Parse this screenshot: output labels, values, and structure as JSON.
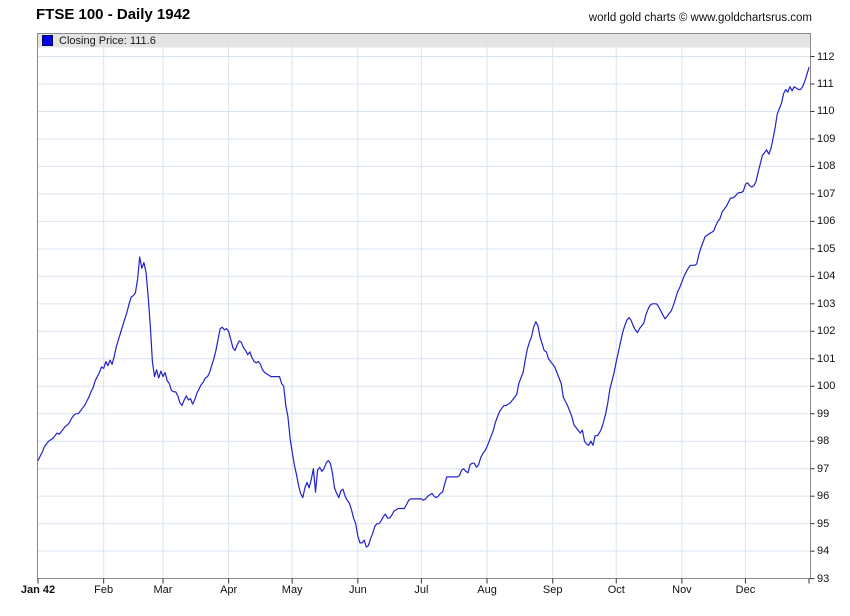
{
  "page": {
    "title": "FTSE 100 - Daily 1942",
    "copyright": "world gold charts © www.goldchartsrus.com"
  },
  "legend": {
    "series_label": "Closing Price",
    "value": "111.6",
    "text": "Closing Price: 111.6",
    "swatch_color": "#0000ee"
  },
  "colors": {
    "line": "#2222cc",
    "grid": "#d9e4f1",
    "border": "#8a8a8a",
    "legend_strip": "#e4e4e4",
    "tick": "#333333",
    "text": "#111111"
  },
  "chart_data": {
    "type": "line",
    "title": "FTSE 100 - Daily 1942",
    "series": [
      {
        "name": "Closing Price",
        "last_value": 111.6
      }
    ],
    "grid": true,
    "legend_position": "top-left",
    "x_axis": {
      "tick_labels": [
        "Jan 42",
        "Feb",
        "Mar",
        "Apr",
        "May",
        "Jun",
        "Jul",
        "Aug",
        "Sep",
        "Oct",
        "Nov",
        "Dec"
      ],
      "month_start_days": [
        0,
        31,
        59,
        90,
        120,
        151,
        181,
        212,
        243,
        273,
        304,
        334
      ],
      "total_days": 364
    },
    "y_axis": {
      "side": "right",
      "min": 93,
      "max": 112,
      "tick_step": 1,
      "tick_labels": [
        93,
        94,
        95,
        96,
        97,
        98,
        99,
        100,
        101,
        102,
        103,
        104,
        105,
        106,
        107,
        108,
        109,
        110,
        111,
        112
      ]
    },
    "points_day_value": [
      [
        0,
        97.3
      ],
      [
        1,
        97.45
      ],
      [
        2,
        97.6
      ],
      [
        3,
        97.8
      ],
      [
        4,
        97.9
      ],
      [
        5,
        98.0
      ],
      [
        6,
        98.05
      ],
      [
        7,
        98.1
      ],
      [
        8,
        98.2
      ],
      [
        9,
        98.3
      ],
      [
        10,
        98.25
      ],
      [
        11,
        98.35
      ],
      [
        12,
        98.45
      ],
      [
        13,
        98.55
      ],
      [
        14,
        98.6
      ],
      [
        15,
        98.7
      ],
      [
        16,
        98.85
      ],
      [
        17,
        98.95
      ],
      [
        18,
        99.0
      ],
      [
        19,
        99.0
      ],
      [
        20,
        99.1
      ],
      [
        21,
        99.2
      ],
      [
        22,
        99.3
      ],
      [
        23,
        99.45
      ],
      [
        24,
        99.6
      ],
      [
        25,
        99.8
      ],
      [
        26,
        99.95
      ],
      [
        27,
        100.2
      ],
      [
        28,
        100.35
      ],
      [
        29,
        100.5
      ],
      [
        30,
        100.7
      ],
      [
        31,
        100.65
      ],
      [
        32,
        100.9
      ],
      [
        33,
        100.75
      ],
      [
        34,
        100.95
      ],
      [
        35,
        100.8
      ],
      [
        36,
        101.1
      ],
      [
        37,
        101.45
      ],
      [
        38,
        101.7
      ],
      [
        39,
        101.95
      ],
      [
        40,
        102.2
      ],
      [
        41,
        102.45
      ],
      [
        42,
        102.7
      ],
      [
        43,
        103.0
      ],
      [
        44,
        103.25
      ],
      [
        45,
        103.3
      ],
      [
        46,
        103.4
      ],
      [
        47,
        103.9
      ],
      [
        48,
        104.7
      ],
      [
        49,
        104.3
      ],
      [
        50,
        104.5
      ],
      [
        51,
        104.15
      ],
      [
        52,
        103.3
      ],
      [
        53,
        102.2
      ],
      [
        54,
        100.9
      ],
      [
        55,
        100.35
      ],
      [
        56,
        100.6
      ],
      [
        57,
        100.3
      ],
      [
        58,
        100.55
      ],
      [
        59,
        100.35
      ],
      [
        60,
        100.5
      ],
      [
        61,
        100.2
      ],
      [
        62,
        100.1
      ],
      [
        63,
        99.85
      ],
      [
        64,
        99.8
      ],
      [
        65,
        99.8
      ],
      [
        66,
        99.65
      ],
      [
        67,
        99.4
      ],
      [
        68,
        99.3
      ],
      [
        69,
        99.5
      ],
      [
        70,
        99.65
      ],
      [
        71,
        99.5
      ],
      [
        72,
        99.55
      ],
      [
        73,
        99.35
      ],
      [
        74,
        99.5
      ],
      [
        75,
        99.75
      ],
      [
        76,
        99.9
      ],
      [
        77,
        100.05
      ],
      [
        78,
        100.15
      ],
      [
        79,
        100.3
      ],
      [
        80,
        100.35
      ],
      [
        81,
        100.5
      ],
      [
        82,
        100.75
      ],
      [
        83,
        101.0
      ],
      [
        84,
        101.3
      ],
      [
        85,
        101.7
      ],
      [
        86,
        102.1
      ],
      [
        87,
        102.15
      ],
      [
        88,
        102.05
      ],
      [
        89,
        102.1
      ],
      [
        90,
        102.0
      ],
      [
        91,
        101.7
      ],
      [
        92,
        101.4
      ],
      [
        93,
        101.3
      ],
      [
        94,
        101.5
      ],
      [
        95,
        101.65
      ],
      [
        96,
        101.6
      ],
      [
        97,
        101.4
      ],
      [
        98,
        101.3
      ],
      [
        99,
        101.15
      ],
      [
        100,
        101.25
      ],
      [
        101,
        101.05
      ],
      [
        102,
        100.9
      ],
      [
        103,
        100.85
      ],
      [
        104,
        100.9
      ],
      [
        105,
        100.8
      ],
      [
        106,
        100.6
      ],
      [
        107,
        100.5
      ],
      [
        108,
        100.45
      ],
      [
        109,
        100.4
      ],
      [
        110,
        100.35
      ],
      [
        111,
        100.35
      ],
      [
        112,
        100.35
      ],
      [
        113,
        100.35
      ],
      [
        114,
        100.35
      ],
      [
        115,
        100.1
      ],
      [
        116,
        100.0
      ],
      [
        117,
        99.3
      ],
      [
        118,
        98.9
      ],
      [
        119,
        98.1
      ],
      [
        120,
        97.6
      ],
      [
        121,
        97.15
      ],
      [
        122,
        96.8
      ],
      [
        123,
        96.4
      ],
      [
        124,
        96.1
      ],
      [
        125,
        95.95
      ],
      [
        126,
        96.3
      ],
      [
        127,
        96.5
      ],
      [
        128,
        96.3
      ],
      [
        129,
        96.6
      ],
      [
        130,
        97.0
      ],
      [
        131,
        96.15
      ],
      [
        132,
        96.95
      ],
      [
        133,
        97.05
      ],
      [
        134,
        96.9
      ],
      [
        135,
        97.0
      ],
      [
        136,
        97.2
      ],
      [
        137,
        97.3
      ],
      [
        138,
        97.2
      ],
      [
        139,
        96.85
      ],
      [
        140,
        96.3
      ],
      [
        141,
        96.1
      ],
      [
        142,
        95.95
      ],
      [
        143,
        96.2
      ],
      [
        144,
        96.25
      ],
      [
        145,
        96.0
      ],
      [
        146,
        95.85
      ],
      [
        147,
        95.75
      ],
      [
        148,
        95.5
      ],
      [
        149,
        95.2
      ],
      [
        150,
        95.0
      ],
      [
        151,
        94.55
      ],
      [
        152,
        94.3
      ],
      [
        153,
        94.3
      ],
      [
        154,
        94.4
      ],
      [
        155,
        94.15
      ],
      [
        156,
        94.2
      ],
      [
        157,
        94.45
      ],
      [
        158,
        94.65
      ],
      [
        159,
        94.9
      ],
      [
        160,
        95.0
      ],
      [
        161,
        95.0
      ],
      [
        162,
        95.1
      ],
      [
        163,
        95.25
      ],
      [
        164,
        95.35
      ],
      [
        165,
        95.2
      ],
      [
        166,
        95.2
      ],
      [
        167,
        95.3
      ],
      [
        168,
        95.45
      ],
      [
        169,
        95.5
      ],
      [
        170,
        95.55
      ],
      [
        171,
        95.55
      ],
      [
        172,
        95.55
      ],
      [
        173,
        95.55
      ],
      [
        174,
        95.7
      ],
      [
        175,
        95.85
      ],
      [
        176,
        95.9
      ],
      [
        177,
        95.9
      ],
      [
        178,
        95.9
      ],
      [
        179,
        95.9
      ],
      [
        180,
        95.9
      ],
      [
        181,
        95.9
      ],
      [
        182,
        95.85
      ],
      [
        183,
        95.9
      ],
      [
        184,
        96.0
      ],
      [
        185,
        96.05
      ],
      [
        186,
        96.1
      ],
      [
        187,
        96.0
      ],
      [
        188,
        95.95
      ],
      [
        189,
        96.0
      ],
      [
        190,
        96.1
      ],
      [
        191,
        96.15
      ],
      [
        192,
        96.45
      ],
      [
        193,
        96.7
      ],
      [
        194,
        96.7
      ],
      [
        195,
        96.7
      ],
      [
        196,
        96.7
      ],
      [
        197,
        96.7
      ],
      [
        198,
        96.7
      ],
      [
        199,
        96.75
      ],
      [
        200,
        96.95
      ],
      [
        201,
        97.0
      ],
      [
        202,
        96.9
      ],
      [
        203,
        96.85
      ],
      [
        204,
        97.15
      ],
      [
        205,
        97.2
      ],
      [
        206,
        97.2
      ],
      [
        207,
        97.05
      ],
      [
        208,
        97.15
      ],
      [
        209,
        97.4
      ],
      [
        210,
        97.55
      ],
      [
        211,
        97.65
      ],
      [
        212,
        97.8
      ],
      [
        213,
        98.0
      ],
      [
        214,
        98.2
      ],
      [
        215,
        98.4
      ],
      [
        216,
        98.7
      ],
      [
        217,
        98.9
      ],
      [
        218,
        99.1
      ],
      [
        219,
        99.2
      ],
      [
        220,
        99.3
      ],
      [
        221,
        99.3
      ],
      [
        222,
        99.35
      ],
      [
        223,
        99.4
      ],
      [
        224,
        99.5
      ],
      [
        225,
        99.6
      ],
      [
        226,
        99.7
      ],
      [
        227,
        100.1
      ],
      [
        228,
        100.3
      ],
      [
        229,
        100.5
      ],
      [
        230,
        100.95
      ],
      [
        231,
        101.35
      ],
      [
        232,
        101.6
      ],
      [
        233,
        101.8
      ],
      [
        234,
        102.15
      ],
      [
        235,
        102.35
      ],
      [
        236,
        102.2
      ],
      [
        237,
        101.8
      ],
      [
        238,
        101.55
      ],
      [
        239,
        101.3
      ],
      [
        240,
        101.25
      ],
      [
        241,
        101.0
      ],
      [
        242,
        100.9
      ],
      [
        243,
        100.8
      ],
      [
        244,
        100.7
      ],
      [
        245,
        100.5
      ],
      [
        246,
        100.3
      ],
      [
        247,
        100.1
      ],
      [
        248,
        99.6
      ],
      [
        249,
        99.45
      ],
      [
        250,
        99.3
      ],
      [
        251,
        99.1
      ],
      [
        252,
        98.9
      ],
      [
        253,
        98.6
      ],
      [
        254,
        98.5
      ],
      [
        255,
        98.4
      ],
      [
        256,
        98.3
      ],
      [
        257,
        98.4
      ],
      [
        258,
        98.0
      ],
      [
        259,
        97.9
      ],
      [
        260,
        97.85
      ],
      [
        261,
        98.0
      ],
      [
        262,
        97.85
      ],
      [
        263,
        98.2
      ],
      [
        264,
        98.2
      ],
      [
        265,
        98.3
      ],
      [
        266,
        98.45
      ],
      [
        267,
        98.7
      ],
      [
        268,
        99.0
      ],
      [
        269,
        99.4
      ],
      [
        270,
        99.9
      ],
      [
        271,
        100.2
      ],
      [
        272,
        100.5
      ],
      [
        273,
        100.9
      ],
      [
        274,
        101.25
      ],
      [
        275,
        101.6
      ],
      [
        276,
        101.95
      ],
      [
        277,
        102.2
      ],
      [
        278,
        102.4
      ],
      [
        279,
        102.5
      ],
      [
        280,
        102.4
      ],
      [
        281,
        102.2
      ],
      [
        282,
        102.05
      ],
      [
        283,
        101.95
      ],
      [
        284,
        102.1
      ],
      [
        285,
        102.2
      ],
      [
        286,
        102.3
      ],
      [
        287,
        102.6
      ],
      [
        288,
        102.8
      ],
      [
        289,
        102.95
      ],
      [
        290,
        103.0
      ],
      [
        291,
        103.0
      ],
      [
        292,
        103.0
      ],
      [
        293,
        102.9
      ],
      [
        294,
        102.75
      ],
      [
        295,
        102.6
      ],
      [
        296,
        102.45
      ],
      [
        297,
        102.55
      ],
      [
        298,
        102.65
      ],
      [
        299,
        102.75
      ],
      [
        300,
        102.95
      ],
      [
        301,
        103.2
      ],
      [
        302,
        103.45
      ],
      [
        303,
        103.6
      ],
      [
        304,
        103.8
      ],
      [
        305,
        104.0
      ],
      [
        306,
        104.15
      ],
      [
        307,
        104.3
      ],
      [
        308,
        104.4
      ],
      [
        309,
        104.4
      ],
      [
        310,
        104.4
      ],
      [
        311,
        104.45
      ],
      [
        312,
        104.8
      ],
      [
        313,
        105.05
      ],
      [
        314,
        105.25
      ],
      [
        315,
        105.45
      ],
      [
        316,
        105.5
      ],
      [
        317,
        105.55
      ],
      [
        318,
        105.6
      ],
      [
        319,
        105.65
      ],
      [
        320,
        105.85
      ],
      [
        321,
        106.0
      ],
      [
        322,
        106.1
      ],
      [
        323,
        106.35
      ],
      [
        324,
        106.45
      ],
      [
        325,
        106.55
      ],
      [
        326,
        106.7
      ],
      [
        327,
        106.85
      ],
      [
        328,
        106.85
      ],
      [
        329,
        106.9
      ],
      [
        330,
        107.0
      ],
      [
        331,
        107.05
      ],
      [
        332,
        107.05
      ],
      [
        333,
        107.1
      ],
      [
        334,
        107.35
      ],
      [
        335,
        107.4
      ],
      [
        336,
        107.3
      ],
      [
        337,
        107.25
      ],
      [
        338,
        107.3
      ],
      [
        339,
        107.45
      ],
      [
        340,
        107.8
      ],
      [
        341,
        108.1
      ],
      [
        342,
        108.4
      ],
      [
        343,
        108.5
      ],
      [
        344,
        108.6
      ],
      [
        345,
        108.45
      ],
      [
        346,
        108.65
      ],
      [
        347,
        109.0
      ],
      [
        348,
        109.4
      ],
      [
        349,
        109.9
      ],
      [
        350,
        110.1
      ],
      [
        351,
        110.3
      ],
      [
        352,
        110.65
      ],
      [
        353,
        110.8
      ],
      [
        354,
        110.7
      ],
      [
        355,
        110.9
      ],
      [
        356,
        110.75
      ],
      [
        357,
        110.9
      ],
      [
        358,
        110.85
      ],
      [
        359,
        110.8
      ],
      [
        360,
        110.8
      ],
      [
        361,
        110.9
      ],
      [
        362,
        111.1
      ],
      [
        363,
        111.35
      ],
      [
        364,
        111.6
      ]
    ]
  }
}
